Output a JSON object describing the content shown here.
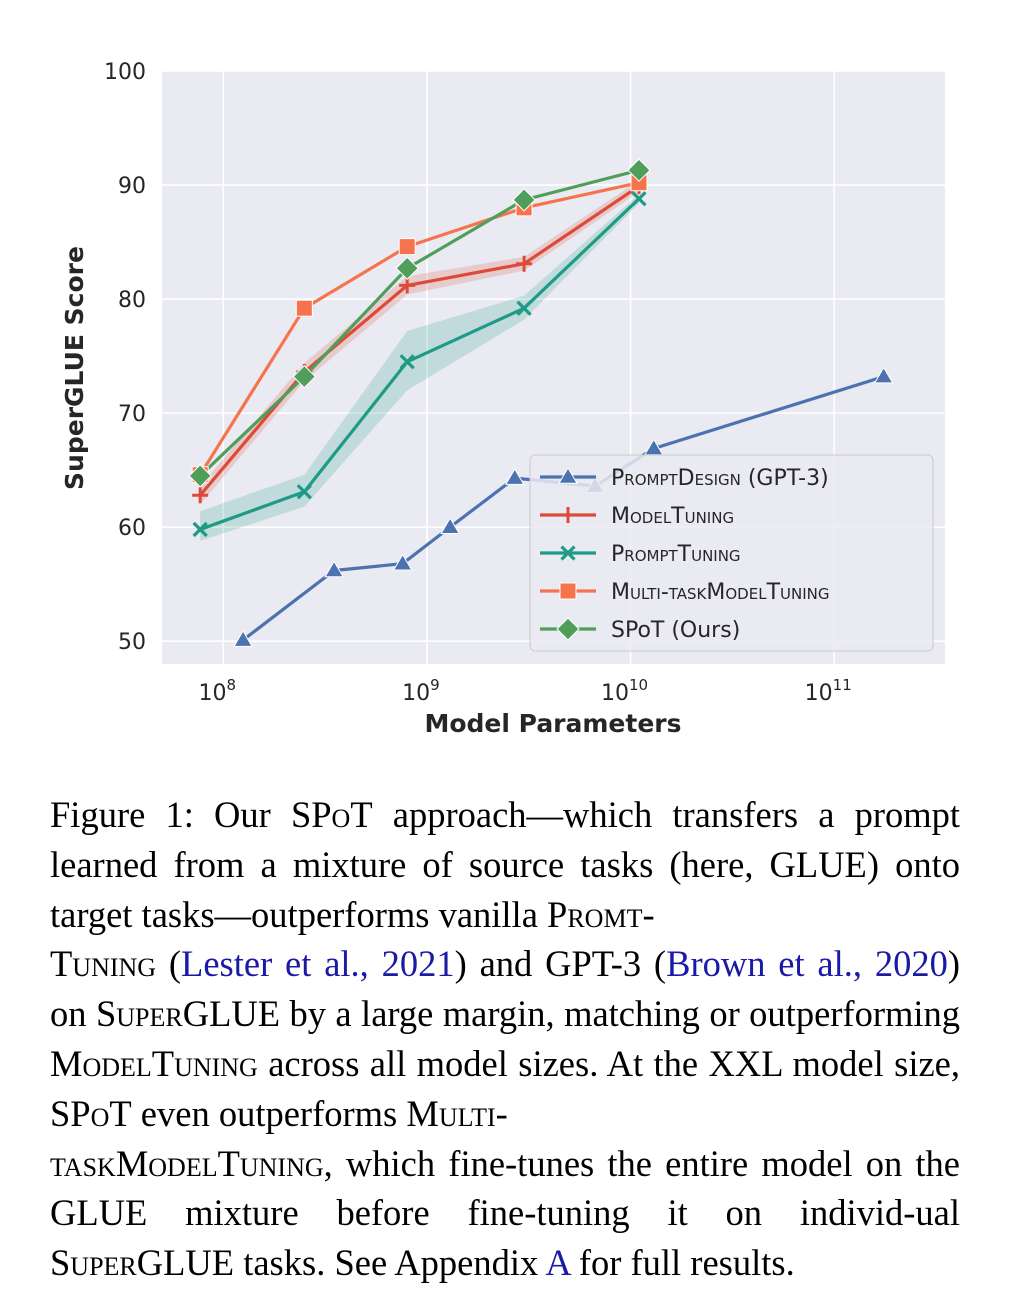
{
  "chart_data": {
    "type": "line",
    "xlabel": "Model Parameters",
    "ylabel": "SuperGLUE Score",
    "xscale": "log",
    "xlim": [
      50000000,
      350000000000
    ],
    "ylim": [
      48,
      100
    ],
    "yticks": [
      50,
      60,
      70,
      80,
      90,
      100
    ],
    "xticks": [
      {
        "value": 100000000,
        "base": "10",
        "exp": "8"
      },
      {
        "value": 1000000000,
        "base": "10",
        "exp": "9"
      },
      {
        "value": 10000000000,
        "base": "10",
        "exp": "10"
      },
      {
        "value": 100000000000,
        "base": "10",
        "exp": "11"
      }
    ],
    "grid": true,
    "legend_position": "lower-right",
    "series": [
      {
        "name": "PromptDesign (GPT-3)",
        "legend_parts": [
          {
            "t": "PromptDesign",
            "sc": true
          },
          {
            "t": " (GPT-3)",
            "sc": false
          }
        ],
        "color": "#4c72b0",
        "marker": "triangle",
        "x": [
          125000000,
          350000000,
          760000000,
          1300000000,
          2700000000,
          6700000000,
          13000000000,
          175000000000
        ],
        "y": [
          50.1,
          56.2,
          56.8,
          60.0,
          64.3,
          63.6,
          66.9,
          73.2
        ]
      },
      {
        "name": "ModelTuning",
        "legend_parts": [
          {
            "t": "ModelTuning",
            "sc": true
          }
        ],
        "color": "#dd4a37",
        "marker": "plus",
        "x": [
          77000000,
          250000000,
          800000000,
          3000000000,
          11000000000
        ],
        "y": [
          62.8,
          73.6,
          81.2,
          83.1,
          89.9
        ],
        "band": [
          [
            62.0,
            63.6
          ],
          [
            72.8,
            74.4
          ],
          [
            80.4,
            82.0
          ],
          [
            82.5,
            83.7
          ],
          [
            89.4,
            90.4
          ]
        ]
      },
      {
        "name": "PromptTuning",
        "legend_parts": [
          {
            "t": "PromptTuning",
            "sc": true
          }
        ],
        "color": "#1e9b86",
        "marker": "x",
        "x": [
          77000000,
          250000000,
          800000000,
          3000000000,
          11000000000
        ],
        "y": [
          59.8,
          63.1,
          74.5,
          79.2,
          88.8
        ],
        "band": [
          [
            58.8,
            61.4
          ],
          [
            61.8,
            64.6
          ],
          [
            72.0,
            77.2
          ],
          [
            78.2,
            80.3
          ],
          [
            88.4,
            89.2
          ]
        ]
      },
      {
        "name": "Multi-taskModelTuning",
        "legend_parts": [
          {
            "t": "Multi-taskModelTuning",
            "sc": true
          }
        ],
        "color": "#f5744e",
        "marker": "square",
        "x": [
          77000000,
          250000000,
          800000000,
          3000000000,
          11000000000
        ],
        "y": [
          64.6,
          79.2,
          84.6,
          88.0,
          90.2
        ]
      },
      {
        "name": "SPoT (Ours)",
        "legend_parts": [
          {
            "t": "SPoT (Ours)",
            "sc": false
          }
        ],
        "color": "#4f9f5a",
        "marker": "diamond",
        "x": [
          77000000,
          250000000,
          800000000,
          3000000000,
          11000000000
        ],
        "y": [
          64.5,
          73.2,
          82.7,
          88.7,
          91.3
        ]
      }
    ]
  },
  "caption": {
    "p1": "Figure 1:  Our ",
    "spot1": "SPoT",
    "p2": " approach—which transfers a prompt learned from a mixture of source tasks (here, GLUE) onto target tasks—outperforms vanilla ",
    "promt_a": "Promt-",
    "promt_b": "Tuning",
    "p3": " (",
    "cite1": "Lester et al., 2021",
    "p4": ") and GPT-3 (",
    "cite2a": "Brown et al.,",
    "cite2b": "2020",
    "p5": ") on ",
    "superglue1": "SuperGLUE",
    "p6": " by a large margin, matching or outperforming ",
    "modeltuning": "ModelTuning",
    "p7": " across all model sizes. At the XXL model size, ",
    "spot2": "SPoT",
    "p8": " even outperforms ",
    "multi_a": "Multi-",
    "multi_b": "taskModelTuning",
    "p9": ", which fine-tunes the entire model on the GLUE mixture before fine-tuning it on individ-ual ",
    "superglue2": "SuperGLUE",
    "p10": " tasks. See Appendix ",
    "appendix": "A",
    "p11": " for full results."
  }
}
